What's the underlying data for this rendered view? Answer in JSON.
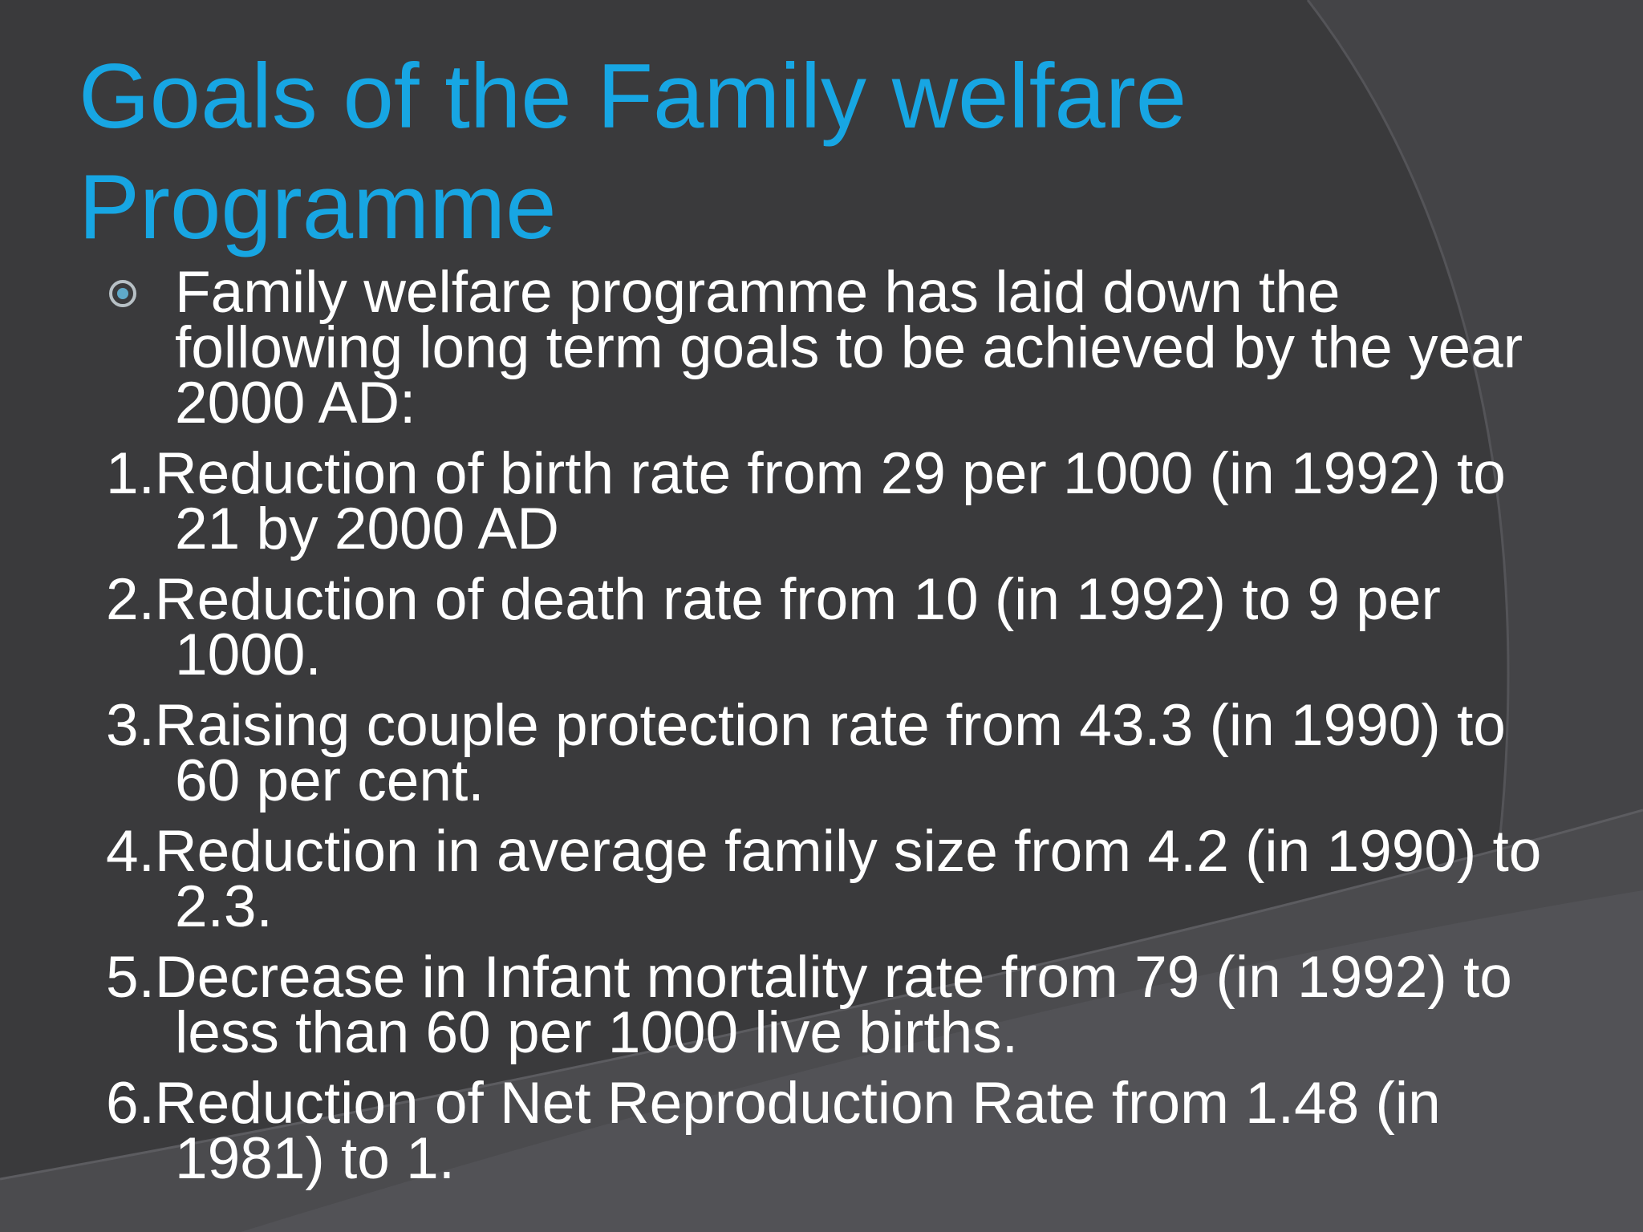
{
  "slide": {
    "title": "Goals of the Family welfare Programme",
    "intro": "Family welfare programme has laid down the following long term goals to be achieved by the year 2000 AD:",
    "goals": [
      "1.Reduction of birth rate from 29 per 1000 (in 1992) to 21 by 2000 AD",
      "2.Reduction of death rate from 10 (in 1992) to 9 per 1000.",
      "3.Raising couple protection rate from 43.3 (in 1990) to 60 per cent.",
      "4.Reduction in average family size from 4.2 (in 1990) to 2.3.",
      "5.Decrease in Infant mortality rate from 79 (in 1992) to less than 60 per 1000 live births.",
      "6.Reduction of Net Reproduction Rate from 1.48 (in 1981) to 1."
    ]
  },
  "icons": {
    "bullet": "circle-bullet-icon"
  },
  "colors": {
    "background": "#3a3a3c",
    "title": "#17a6e3",
    "body_text": "#ffffff"
  }
}
